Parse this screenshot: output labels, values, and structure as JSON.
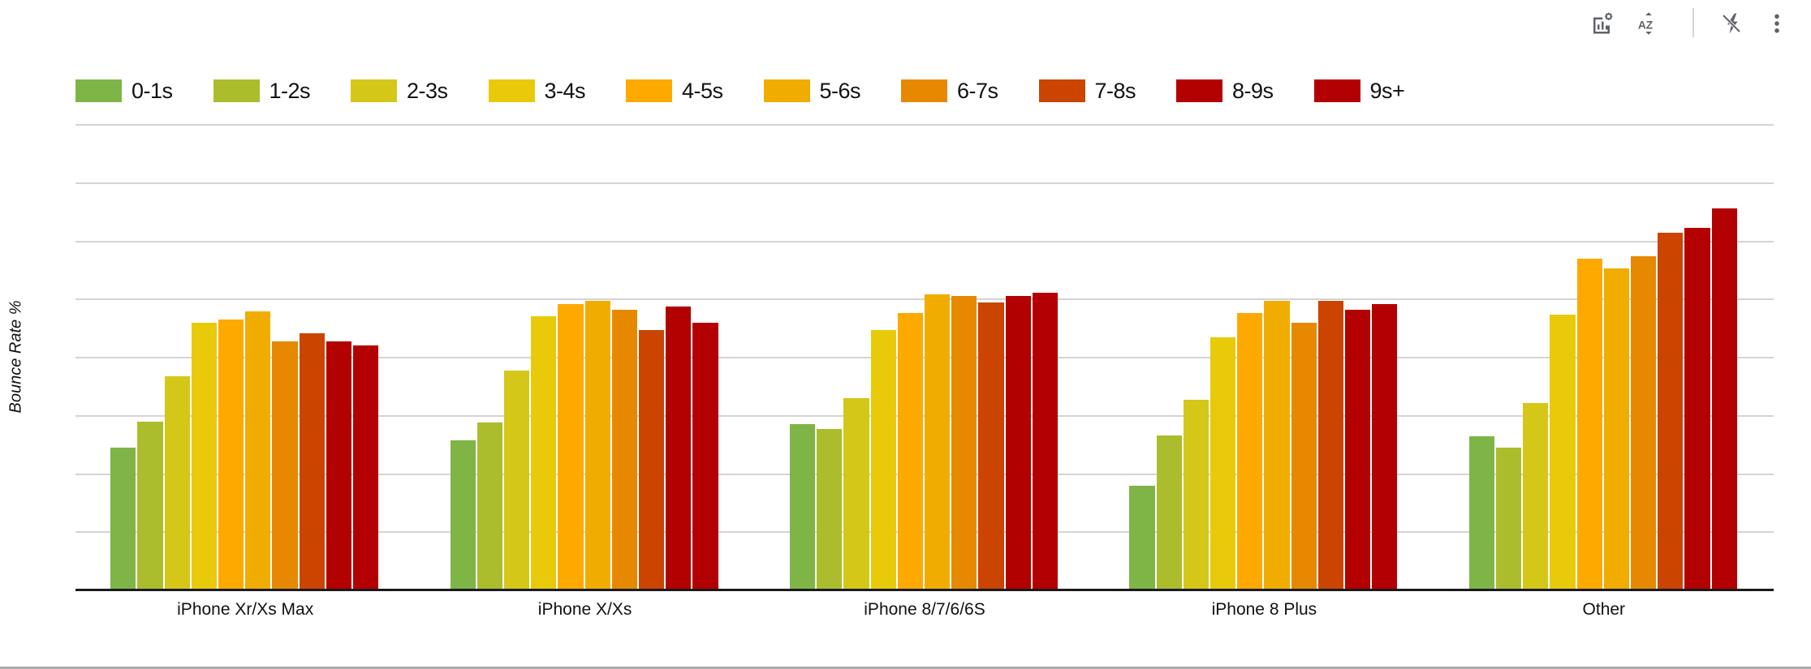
{
  "toolbar": {
    "icons": [
      {
        "name": "chart-settings-icon"
      },
      {
        "name": "sort-az-icon"
      },
      {
        "name": "lightning-off-icon"
      },
      {
        "name": "more-vert-icon"
      }
    ]
  },
  "axis": {
    "ylabel": "Bounce Rate %"
  },
  "colors": {
    "0-1s": "#7fb446",
    "1-2s": "#abbd2d",
    "2-3s": "#d4c718",
    "3-4s": "#e8ca0a",
    "4-5s": "#fea900",
    "5-6s": "#f0ad00",
    "6-7s": "#e68900",
    "7-8s": "#cb4400",
    "8-9s": "#b30000",
    "9s+": "#b30003"
  },
  "chart_data": {
    "type": "bar",
    "title": "",
    "xlabel": "",
    "ylabel": "Bounce Rate %",
    "ylim": [
      0,
      80
    ],
    "y_tick_labels_visible": false,
    "gridlines": 8,
    "grid": true,
    "legend_position": "top",
    "categories": [
      "iPhone Xr/Xs Max",
      "iPhone X/Xs",
      "iPhone 8/7/6/6S",
      "iPhone 8 Plus",
      "Other"
    ],
    "series": [
      {
        "name": "0-1s",
        "color": "#7fb446",
        "values": [
          24.4,
          25.7,
          28.4,
          17.8,
          26.3
        ]
      },
      {
        "name": "1-2s",
        "color": "#abbd2d",
        "values": [
          28.9,
          28.7,
          27.6,
          26.5,
          24.4
        ]
      },
      {
        "name": "2-3s",
        "color": "#d4c718",
        "values": [
          36.6,
          37.6,
          32.9,
          32.6,
          32.1
        ]
      },
      {
        "name": "3-4s",
        "color": "#e8ca0a",
        "values": [
          45.9,
          47.0,
          44.6,
          43.3,
          47.2
        ]
      },
      {
        "name": "4-5s",
        "color": "#fea900",
        "values": [
          46.4,
          49.1,
          47.5,
          47.5,
          56.8
        ]
      },
      {
        "name": "5-6s",
        "color": "#f0ad00",
        "values": [
          47.8,
          49.6,
          50.7,
          49.6,
          55.2
        ]
      },
      {
        "name": "6-7s",
        "color": "#e68900",
        "values": [
          42.7,
          48.1,
          50.4,
          45.9,
          57.3
        ]
      },
      {
        "name": "7-8s",
        "color": "#cb4400",
        "values": [
          44.1,
          44.6,
          49.4,
          49.6,
          61.3
        ]
      },
      {
        "name": "8-9s",
        "color": "#b30000",
        "values": [
          42.7,
          48.6,
          50.4,
          48.1,
          62.1
        ]
      },
      {
        "name": "9s+",
        "color": "#b30003",
        "values": [
          41.9,
          45.9,
          51.0,
          49.1,
          65.5
        ]
      }
    ]
  }
}
